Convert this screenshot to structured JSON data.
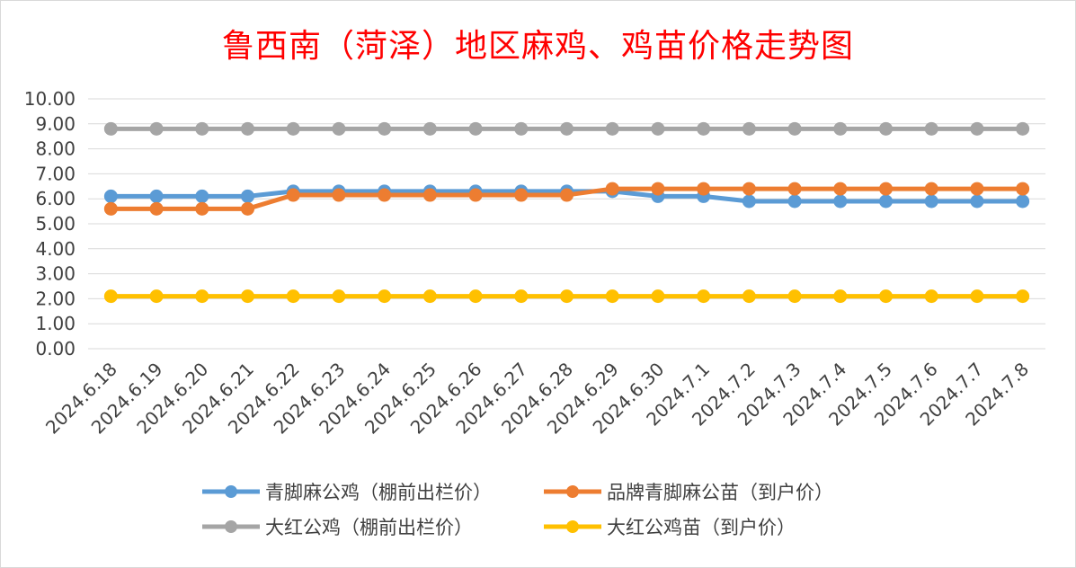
{
  "chart_data": {
    "type": "line",
    "title": "鲁西南（菏泽）地区麻鸡、鸡苗价格走势图",
    "categories": [
      "2024.6.18",
      "2024.6.19",
      "2024.6.20",
      "2024.6.21",
      "2024.6.22",
      "2024.6.23",
      "2024.6.24",
      "2024.6.25",
      "2024.6.26",
      "2024.6.27",
      "2024.6.28",
      "2024.6.29",
      "2024.6.30",
      "2024.7.1",
      "2024.7.2",
      "2024.7.3",
      "2024.7.4",
      "2024.7.5",
      "2024.7.6",
      "2024.7.7",
      "2024.7.8"
    ],
    "y_ticks": [
      "0.00",
      "1.00",
      "2.00",
      "3.00",
      "4.00",
      "5.00",
      "6.00",
      "7.00",
      "8.00",
      "9.00",
      "10.00"
    ],
    "ylim": [
      0,
      10
    ],
    "grid": true,
    "legend_position": "bottom",
    "series": [
      {
        "name": "青脚麻公鸡（棚前出栏价）",
        "color": "#5b9bd5",
        "values": [
          6.1,
          6.1,
          6.1,
          6.1,
          6.3,
          6.3,
          6.3,
          6.3,
          6.3,
          6.3,
          6.3,
          6.3,
          6.1,
          6.1,
          5.9,
          5.9,
          5.9,
          5.9,
          5.9,
          5.9,
          5.9
        ]
      },
      {
        "name": "品牌青脚麻公苗（到户价）",
        "color": "#ed7d31",
        "values": [
          5.6,
          5.6,
          5.6,
          5.6,
          6.15,
          6.15,
          6.15,
          6.15,
          6.15,
          6.15,
          6.15,
          6.4,
          6.4,
          6.4,
          6.4,
          6.4,
          6.4,
          6.4,
          6.4,
          6.4,
          6.4
        ]
      },
      {
        "name": "大红公鸡（棚前出栏价）",
        "color": "#a5a5a5",
        "values": [
          8.8,
          8.8,
          8.8,
          8.8,
          8.8,
          8.8,
          8.8,
          8.8,
          8.8,
          8.8,
          8.8,
          8.8,
          8.8,
          8.8,
          8.8,
          8.8,
          8.8,
          8.8,
          8.8,
          8.8,
          8.8
        ]
      },
      {
        "name": "大红公鸡苗（到户价）",
        "color": "#ffc000",
        "values": [
          2.1,
          2.1,
          2.1,
          2.1,
          2.1,
          2.1,
          2.1,
          2.1,
          2.1,
          2.1,
          2.1,
          2.1,
          2.1,
          2.1,
          2.1,
          2.1,
          2.1,
          2.1,
          2.1,
          2.1,
          2.1
        ]
      }
    ]
  }
}
